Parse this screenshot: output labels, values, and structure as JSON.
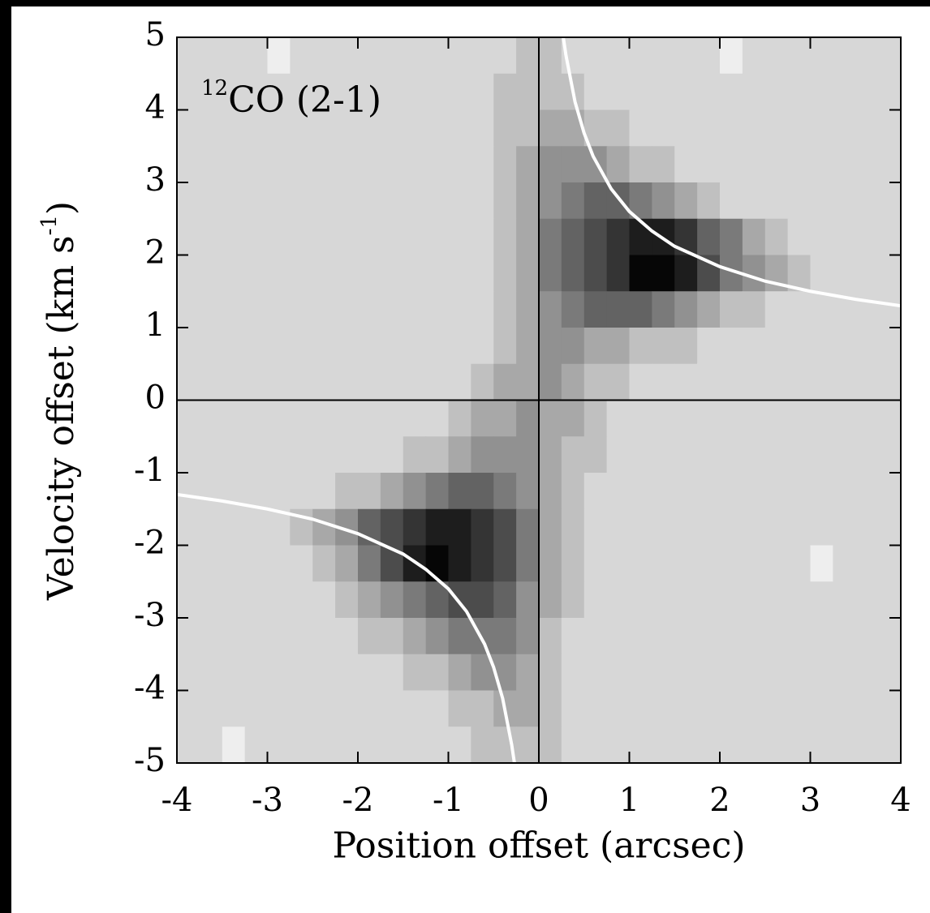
{
  "chart_data": {
    "type": "heatmap",
    "annotation_sup": "12",
    "annotation": "CO (2-1)",
    "xlabel": "Position offset (arcsec)",
    "ylabel": [
      "Velocity offset (km s",
      "-1",
      ")"
    ],
    "xlim": [
      -4,
      4
    ],
    "ylim": [
      -5,
      5
    ],
    "xticks": [
      -4,
      -3,
      -2,
      -1,
      0,
      1,
      2,
      3,
      4
    ],
    "yticks": [
      -5,
      -4,
      -3,
      -2,
      -1,
      0,
      1,
      2,
      3,
      4,
      5
    ],
    "zlim": [
      0,
      10
    ],
    "x": [
      -3.875,
      -3.625,
      -3.375,
      -3.125,
      -2.875,
      -2.625,
      -2.375,
      -2.125,
      -1.875,
      -1.625,
      -1.375,
      -1.125,
      -0.875,
      -0.625,
      -0.375,
      -0.125,
      0.125,
      0.375,
      0.625,
      0.875,
      1.125,
      1.375,
      1.625,
      1.875,
      2.125,
      2.375,
      2.625,
      2.875,
      3.125,
      3.375,
      3.625,
      3.875
    ],
    "y": [
      4.75,
      4.25,
      3.75,
      3.25,
      2.75,
      2.25,
      1.75,
      1.25,
      0.75,
      0.25,
      -0.25,
      -0.75,
      -1.25,
      -1.75,
      -2.25,
      -2.75,
      -3.25,
      -3.75,
      -4.25,
      -4.75
    ],
    "z": [
      [
        1,
        1,
        1,
        1,
        0,
        1,
        1,
        1,
        1,
        1,
        1,
        1,
        1,
        1,
        1,
        2,
        2,
        1,
        1,
        1,
        1,
        1,
        1,
        1,
        0,
        1,
        1,
        1,
        1,
        1,
        1,
        1
      ],
      [
        1,
        1,
        1,
        1,
        1,
        1,
        1,
        1,
        1,
        1,
        1,
        1,
        1,
        1,
        2,
        2,
        2,
        2,
        1,
        1,
        1,
        1,
        1,
        1,
        1,
        1,
        1,
        1,
        1,
        1,
        1,
        1
      ],
      [
        1,
        1,
        1,
        1,
        1,
        1,
        1,
        1,
        1,
        1,
        1,
        1,
        1,
        1,
        2,
        2,
        3,
        3,
        2,
        2,
        1,
        1,
        1,
        1,
        1,
        1,
        1,
        1,
        1,
        1,
        1,
        1
      ],
      [
        1,
        1,
        1,
        1,
        1,
        1,
        1,
        1,
        1,
        1,
        1,
        1,
        1,
        1,
        2,
        3,
        4,
        4,
        4,
        3,
        2,
        2,
        1,
        1,
        1,
        1,
        1,
        1,
        1,
        1,
        1,
        1
      ],
      [
        1,
        1,
        1,
        1,
        1,
        1,
        1,
        1,
        1,
        1,
        1,
        1,
        1,
        1,
        2,
        3,
        4,
        5,
        6,
        6,
        5,
        4,
        3,
        2,
        1,
        1,
        1,
        1,
        1,
        1,
        1,
        1
      ],
      [
        1,
        1,
        1,
        1,
        1,
        1,
        1,
        1,
        1,
        1,
        1,
        1,
        1,
        1,
        2,
        3,
        5,
        6,
        7,
        8,
        9,
        9,
        8,
        6,
        5,
        3,
        2,
        1,
        1,
        1,
        1,
        1
      ],
      [
        1,
        1,
        1,
        1,
        1,
        1,
        1,
        1,
        1,
        1,
        1,
        1,
        1,
        1,
        2,
        3,
        5,
        6,
        7,
        8,
        10,
        10,
        9,
        7,
        5,
        4,
        3,
        2,
        1,
        1,
        1,
        1
      ],
      [
        1,
        1,
        1,
        1,
        1,
        1,
        1,
        1,
        1,
        1,
        1,
        1,
        1,
        1,
        2,
        3,
        4,
        5,
        6,
        6,
        6,
        5,
        4,
        3,
        2,
        2,
        1,
        1,
        1,
        1,
        1,
        1
      ],
      [
        1,
        1,
        1,
        1,
        1,
        1,
        1,
        1,
        1,
        1,
        1,
        1,
        1,
        1,
        2,
        3,
        4,
        4,
        3,
        3,
        2,
        2,
        2,
        1,
        1,
        1,
        1,
        1,
        1,
        1,
        1,
        1
      ],
      [
        1,
        1,
        1,
        1,
        1,
        1,
        1,
        1,
        1,
        1,
        1,
        1,
        1,
        2,
        3,
        3,
        4,
        3,
        2,
        2,
        1,
        1,
        1,
        1,
        1,
        1,
        1,
        1,
        1,
        1,
        1,
        1
      ],
      [
        1,
        1,
        1,
        1,
        1,
        1,
        1,
        1,
        1,
        1,
        1,
        1,
        2,
        3,
        3,
        4,
        3,
        3,
        2,
        1,
        1,
        1,
        1,
        1,
        1,
        1,
        1,
        1,
        1,
        1,
        1,
        1
      ],
      [
        1,
        1,
        1,
        1,
        1,
        1,
        1,
        1,
        1,
        1,
        2,
        2,
        3,
        4,
        4,
        4,
        3,
        2,
        2,
        1,
        1,
        1,
        1,
        1,
        1,
        1,
        1,
        1,
        1,
        1,
        1,
        1
      ],
      [
        1,
        1,
        1,
        1,
        1,
        1,
        1,
        2,
        2,
        3,
        4,
        5,
        6,
        6,
        5,
        4,
        3,
        2,
        1,
        1,
        1,
        1,
        1,
        1,
        1,
        1,
        1,
        1,
        1,
        1,
        1,
        1
      ],
      [
        1,
        1,
        1,
        1,
        1,
        2,
        3,
        4,
        6,
        7,
        8,
        9,
        9,
        8,
        7,
        5,
        3,
        2,
        1,
        1,
        1,
        1,
        1,
        1,
        1,
        1,
        1,
        1,
        1,
        1,
        1,
        1
      ],
      [
        1,
        1,
        1,
        1,
        1,
        1,
        2,
        3,
        5,
        7,
        9,
        10,
        9,
        8,
        7,
        5,
        3,
        2,
        1,
        1,
        1,
        1,
        1,
        1,
        1,
        1,
        1,
        1,
        0,
        1,
        1,
        1
      ],
      [
        1,
        1,
        1,
        1,
        1,
        1,
        1,
        2,
        3,
        4,
        5,
        6,
        7,
        7,
        6,
        4,
        3,
        2,
        1,
        1,
        1,
        1,
        1,
        1,
        1,
        1,
        1,
        1,
        1,
        1,
        1,
        1
      ],
      [
        1,
        1,
        1,
        1,
        1,
        1,
        1,
        1,
        2,
        2,
        3,
        4,
        5,
        5,
        5,
        4,
        2,
        1,
        1,
        1,
        1,
        1,
        1,
        1,
        1,
        1,
        1,
        1,
        1,
        1,
        1,
        1
      ],
      [
        1,
        1,
        1,
        1,
        1,
        1,
        1,
        1,
        1,
        1,
        2,
        2,
        3,
        4,
        4,
        3,
        2,
        1,
        1,
        1,
        1,
        1,
        1,
        1,
        1,
        1,
        1,
        1,
        1,
        1,
        1,
        1
      ],
      [
        1,
        1,
        1,
        1,
        1,
        1,
        1,
        1,
        1,
        1,
        1,
        1,
        2,
        2,
        3,
        3,
        2,
        1,
        1,
        1,
        1,
        1,
        1,
        1,
        1,
        1,
        1,
        1,
        1,
        1,
        1,
        1
      ],
      [
        1,
        1,
        0,
        1,
        1,
        1,
        1,
        1,
        1,
        1,
        1,
        1,
        1,
        2,
        2,
        2,
        2,
        1,
        1,
        1,
        1,
        1,
        1,
        1,
        1,
        1,
        1,
        1,
        1,
        1,
        1,
        1
      ]
    ],
    "curves": [
      {
        "color": "#ffffff",
        "x": [
          0.27,
          0.3,
          0.4,
          0.5,
          0.6,
          0.8,
          1,
          1.25,
          1.5,
          2,
          2.5,
          3,
          3.5,
          4
        ],
        "y": [
          5.0,
          4.75,
          4.11,
          3.68,
          3.36,
          2.91,
          2.6,
          2.33,
          2.12,
          1.84,
          1.64,
          1.5,
          1.39,
          1.3
        ]
      },
      {
        "color": "#ffffff",
        "x": [
          -0.27,
          -0.3,
          -0.4,
          -0.5,
          -0.6,
          -0.8,
          -1,
          -1.25,
          -1.5,
          -2,
          -2.5,
          -3,
          -3.5,
          -4
        ],
        "y": [
          -5.0,
          -4.75,
          -4.11,
          -3.68,
          -3.36,
          -2.91,
          -2.6,
          -2.33,
          -2.12,
          -1.84,
          -1.64,
          -1.5,
          -1.39,
          -1.3
        ]
      }
    ]
  }
}
